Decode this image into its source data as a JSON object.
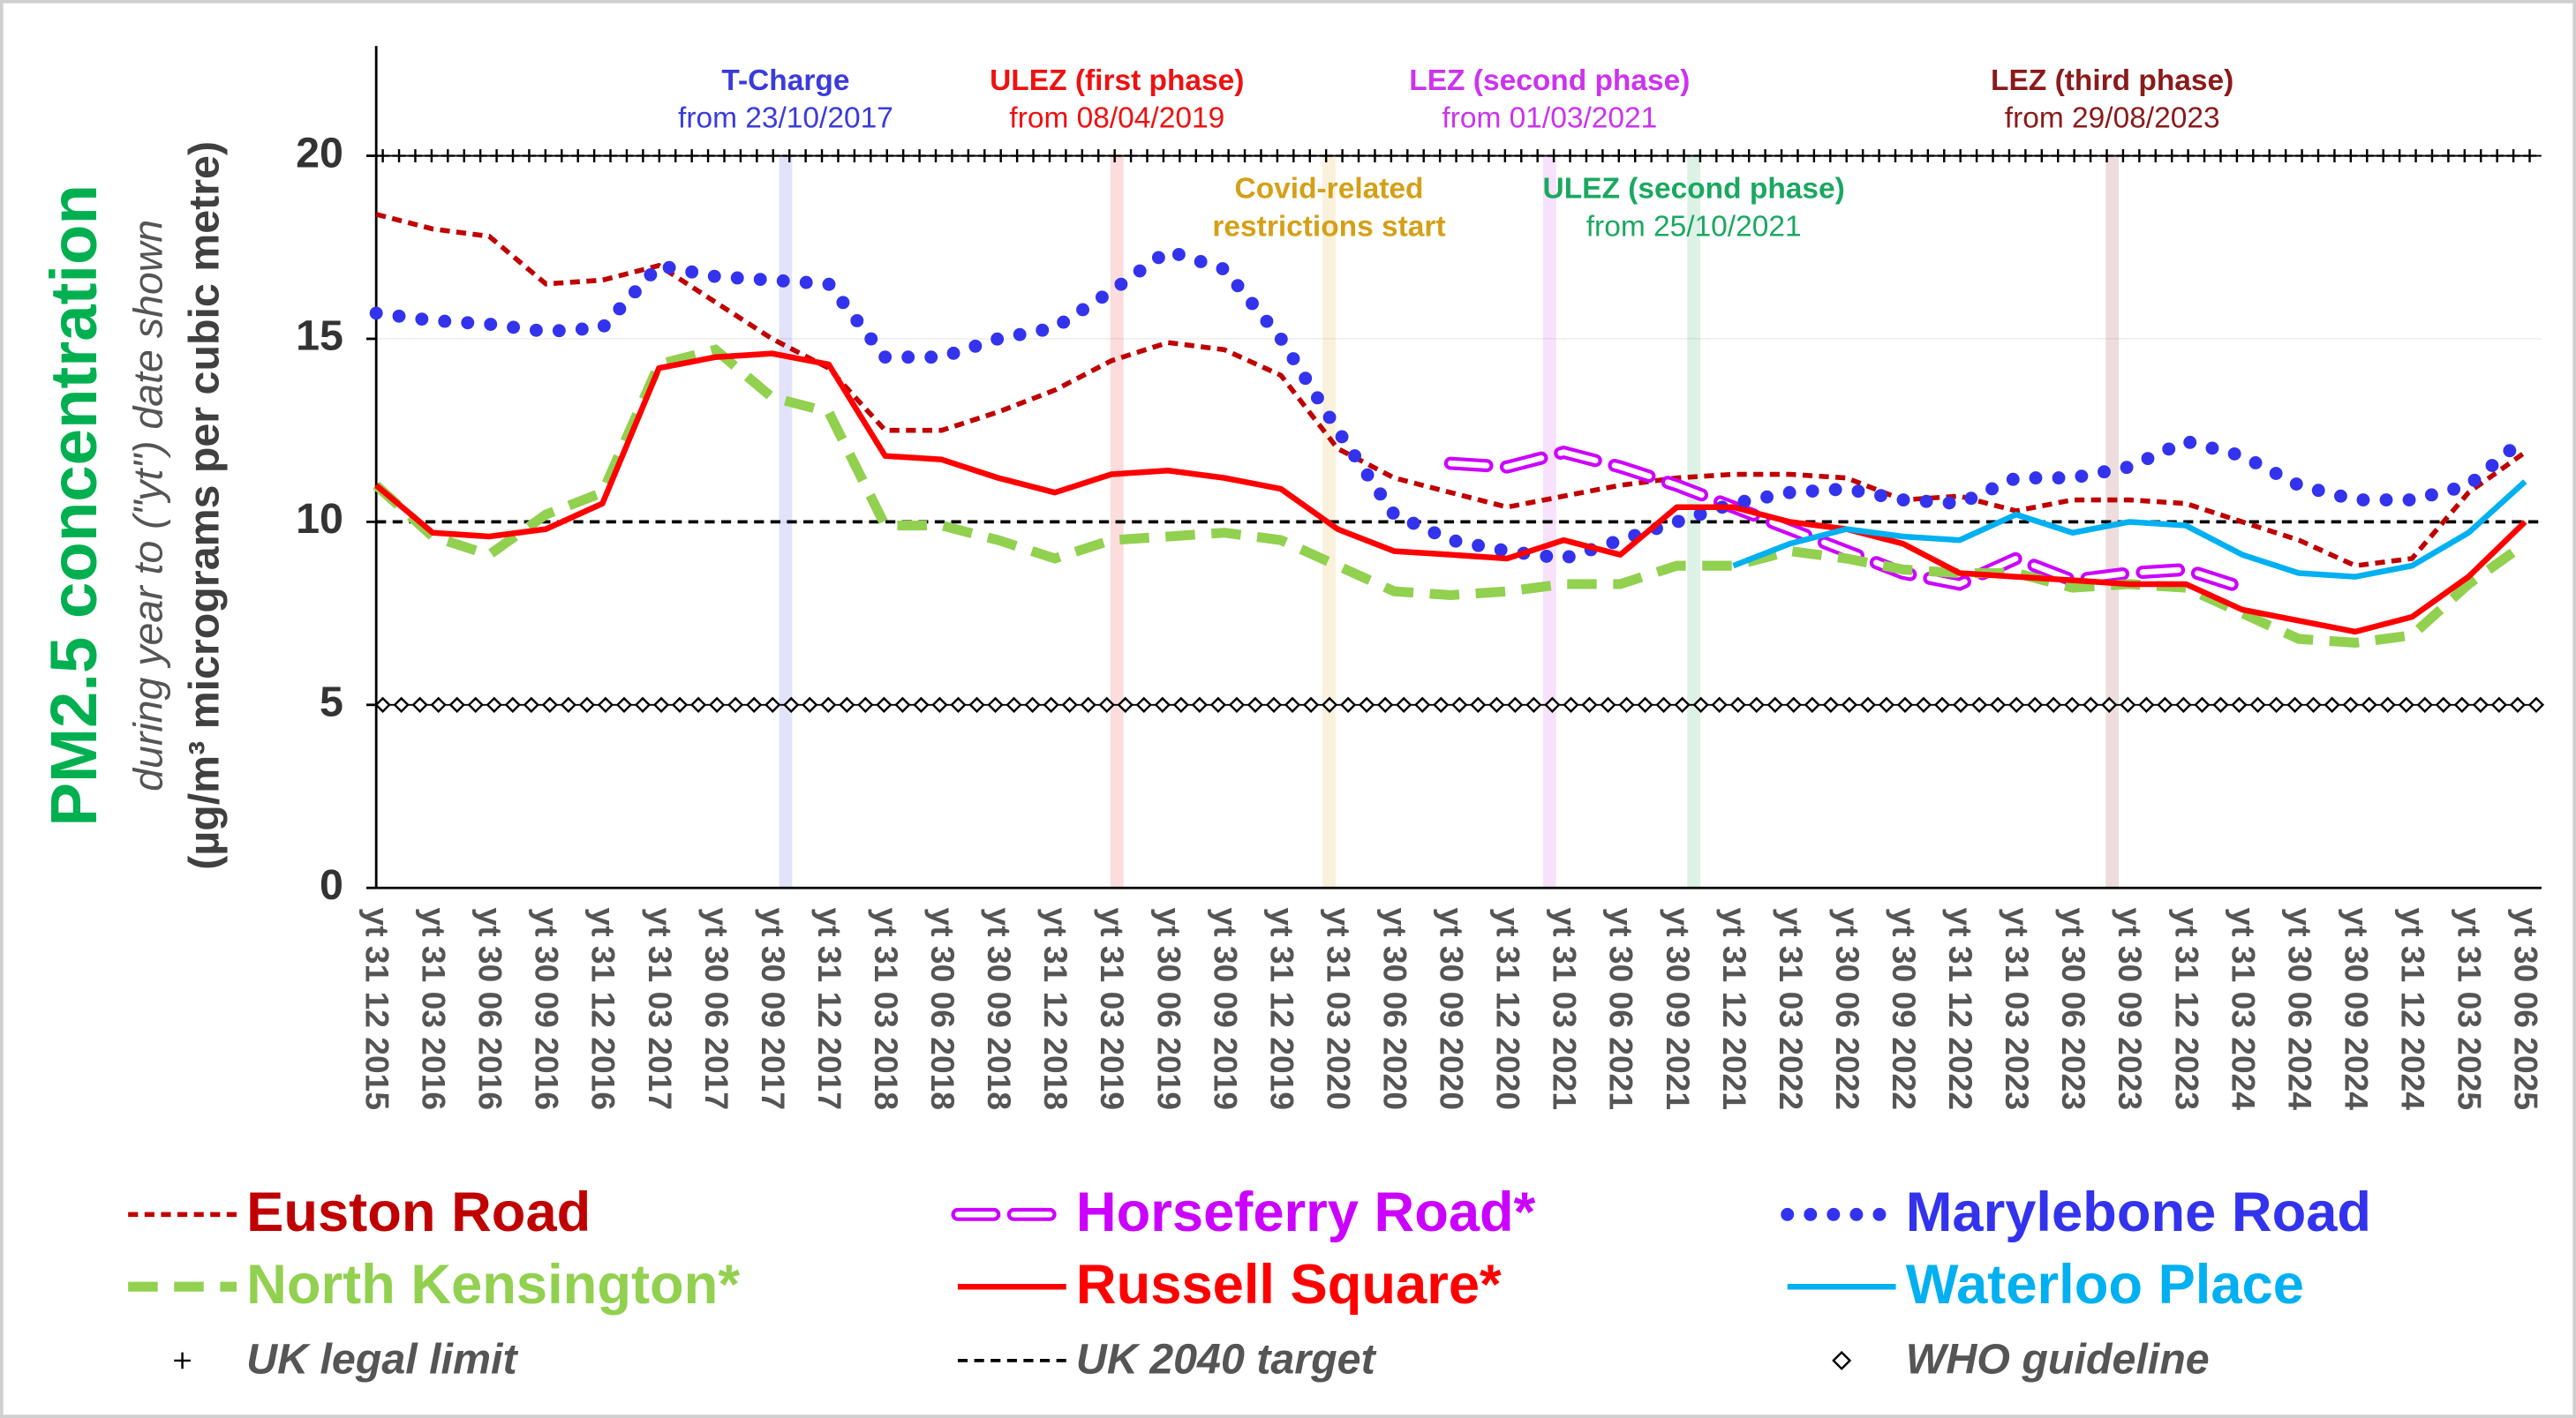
{
  "chart_data": {
    "type": "line",
    "y_title": [
      "PM2.5 concentration",
      "during year to (\"yt\") date shown",
      "(µg/m³ micrograms per cubic metre)"
    ],
    "categories": [
      "yt 31 12 2015",
      "yt 31 03 2016",
      "yt 30 06 2016",
      "yt 30 09 2016",
      "yt 31 12 2016",
      "yt 31 03 2017",
      "yt 30 06 2017",
      "yt 30 09 2017",
      "yt 31 12 2017",
      "yt 31 03 2018",
      "yt 30 06 2018",
      "yt 30 09 2018",
      "yt 31 12 2018",
      "yt 31 03 2019",
      "yt 30 06 2019",
      "yt 30 09 2019",
      "yt 31 12 2019",
      "yt 31 03 2020",
      "yt 30 06 2020",
      "yt 30 09 2020",
      "yt 31 12 2020",
      "yt 31 03 2021",
      "yt 30 06 2021",
      "yt 30 09 2021",
      "yt 31 12 2021",
      "yt 31 03 2022",
      "yt 30 06 2022",
      "yt 30 09 2022",
      "yt 31 12 2022",
      "yt 31 03 2023",
      "yt 30 06 2023",
      "yt 30 09 2023",
      "yt 31 12 2023",
      "yt 31 03 2024",
      "yt 30 06 2024",
      "yt 30 09 2024",
      "yt 31 12 2024",
      "yt 31 03 2025",
      "yt 30 06 2025"
    ],
    "ylim": [
      0,
      23
    ],
    "yticks": [
      0,
      5,
      10,
      15,
      20
    ],
    "grid": true,
    "series": [
      {
        "name": "Euston Road",
        "color": "#c00000",
        "style": "dashed",
        "values": [
          18.4,
          18.0,
          17.8,
          16.5,
          16.6,
          17.0,
          16.0,
          15.0,
          14.2,
          12.5,
          12.5,
          13.0,
          13.6,
          14.4,
          14.9,
          14.7,
          14.0,
          12.0,
          11.2,
          10.8,
          10.4,
          10.7,
          11.0,
          11.2,
          11.3,
          11.3,
          11.2,
          10.6,
          10.7,
          10.3,
          10.6,
          10.6,
          10.5,
          10.0,
          9.5,
          8.8,
          9.0,
          10.8,
          11.9
        ]
      },
      {
        "name": "Horseferry Road*",
        "color": "#cc00ff",
        "style": "hollow",
        "values": [
          null,
          null,
          null,
          null,
          null,
          null,
          null,
          null,
          null,
          null,
          null,
          null,
          null,
          null,
          null,
          null,
          null,
          null,
          null,
          11.6,
          11.5,
          11.9,
          11.5,
          11.0,
          10.4,
          9.8,
          9.2,
          8.6,
          8.3,
          9.0,
          8.4,
          8.6,
          8.7,
          8.2,
          null,
          null,
          null,
          null,
          null
        ]
      },
      {
        "name": "Marylebone Road",
        "color": "#3333ee",
        "style": "dotted",
        "values": [
          15.7,
          15.5,
          15.4,
          15.2,
          15.3,
          17.0,
          16.7,
          16.6,
          16.5,
          14.5,
          14.5,
          15.0,
          15.3,
          16.3,
          17.4,
          16.9,
          15.0,
          12.5,
          10.2,
          9.5,
          9.2,
          9.0,
          9.5,
          10.0,
          10.5,
          10.8,
          10.9,
          10.6,
          10.5,
          11.2,
          11.2,
          11.5,
          12.2,
          11.8,
          11.0,
          10.6,
          10.6,
          11.0,
          12.3
        ]
      },
      {
        "name": "North Kensington*",
        "color": "#92d050",
        "style": "longdash",
        "values": [
          11.0,
          9.6,
          9.1,
          10.2,
          10.8,
          14.3,
          14.7,
          13.4,
          13.0,
          9.9,
          9.9,
          9.5,
          9.0,
          9.5,
          9.6,
          9.7,
          9.5,
          8.8,
          8.1,
          8.0,
          8.1,
          8.3,
          8.3,
          8.8,
          8.8,
          9.2,
          9.0,
          8.7,
          8.6,
          8.6,
          8.2,
          8.3,
          8.2,
          7.5,
          6.8,
          6.7,
          6.9,
          8.3,
          9.4
        ]
      },
      {
        "name": "Russell Square*",
        "color": "#ff0000",
        "style": "solid",
        "values": [
          11.0,
          9.7,
          9.6,
          9.8,
          10.5,
          14.2,
          14.5,
          14.6,
          14.3,
          11.8,
          11.7,
          11.2,
          10.8,
          11.3,
          11.4,
          11.2,
          10.9,
          9.8,
          9.2,
          9.1,
          9.0,
          9.5,
          9.1,
          10.4,
          10.4,
          10.0,
          9.8,
          9.4,
          8.6,
          8.5,
          8.4,
          8.3,
          8.3,
          7.6,
          7.3,
          7.0,
          7.4,
          8.5,
          10.0
        ]
      },
      {
        "name": "Waterloo Place",
        "color": "#00b0f0",
        "style": "solid",
        "values": [
          null,
          null,
          null,
          null,
          null,
          null,
          null,
          null,
          null,
          null,
          null,
          null,
          null,
          null,
          null,
          null,
          null,
          null,
          null,
          null,
          null,
          null,
          null,
          null,
          8.8,
          9.4,
          9.8,
          9.6,
          9.5,
          10.2,
          9.7,
          10.0,
          9.9,
          9.1,
          8.6,
          8.5,
          8.8,
          9.7,
          11.1
        ]
      }
    ],
    "reference_lines": [
      {
        "name": "UK legal limit",
        "value": 20,
        "marker": "plus",
        "color": "#000000"
      },
      {
        "name": "UK 2040 target",
        "value": 10,
        "marker": "dash",
        "color": "#000000"
      },
      {
        "name": "WHO guideline",
        "value": 5,
        "marker": "diamond",
        "color": "#000000"
      }
    ],
    "annotations": [
      {
        "x": 7.24,
        "color": "#3b3bdb",
        "lines": [
          "T-Charge",
          "from 23/10/2017"
        ]
      },
      {
        "x": 13.1,
        "color": "#ee1111",
        "lines": [
          "ULEZ (first phase)",
          "from 08/04/2019"
        ]
      },
      {
        "x": 16.85,
        "color": "#d4a017",
        "lines": [
          "Covid-related",
          "restrictions start"
        ]
      },
      {
        "x": 20.75,
        "color": "#cc33ee",
        "lines": [
          "LEZ (second phase)",
          "from 01/03/2021"
        ]
      },
      {
        "x": 23.3,
        "color": "#1aa860",
        "lines": [
          "ULEZ (second phase)",
          "from 25/10/2021"
        ]
      },
      {
        "x": 30.7,
        "color": "#8b1a1a",
        "lines": [
          "LEZ (third phase)",
          "from 29/08/2023"
        ]
      }
    ]
  }
}
